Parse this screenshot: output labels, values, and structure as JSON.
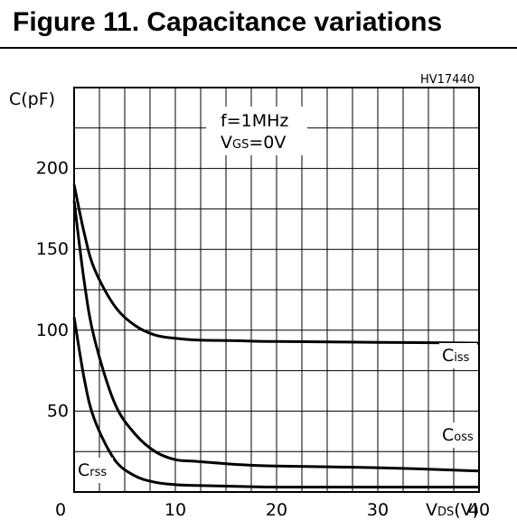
{
  "figure": {
    "title": "Figure 11. Capacitance variations",
    "code": "HV17440"
  },
  "chart_data": {
    "type": "line",
    "ylabel": "C(pF)",
    "xlabel": "VDS(V)",
    "xlim": [
      0,
      40
    ],
    "ylim": [
      0,
      250
    ],
    "x_ticks": [
      "0",
      "10",
      "20",
      "30",
      "40"
    ],
    "y_ticks": [
      "50",
      "100",
      "150",
      "200"
    ],
    "grid": true,
    "annotation": {
      "line1": "f=1MHz",
      "line2": "VGS=0V"
    },
    "series": [
      {
        "name": "Ciss",
        "x": [
          0,
          1,
          2,
          4,
          6,
          8,
          10,
          12,
          16,
          20,
          30,
          40
        ],
        "y": [
          190,
          160,
          138,
          115,
          103,
          97,
          95,
          94,
          93.5,
          93,
          92.5,
          92
        ]
      },
      {
        "name": "Coss",
        "x": [
          0,
          1,
          2,
          4,
          6,
          8,
          10,
          12,
          16,
          20,
          30,
          40
        ],
        "y": [
          180,
          130,
          95,
          55,
          36,
          25,
          20,
          19,
          17,
          16,
          15,
          13
        ]
      },
      {
        "name": "Crss",
        "x": [
          0,
          1,
          2,
          4,
          6,
          8,
          10,
          12,
          16,
          20,
          30,
          40
        ],
        "y": [
          108,
          70,
          45,
          20,
          10,
          6,
          4.5,
          4,
          3.5,
          3,
          3,
          3
        ]
      }
    ],
    "series_labels": [
      {
        "main": "C",
        "sub": "iss"
      },
      {
        "main": "C",
        "sub": "oss"
      },
      {
        "main": "C",
        "sub": "rss"
      }
    ]
  }
}
